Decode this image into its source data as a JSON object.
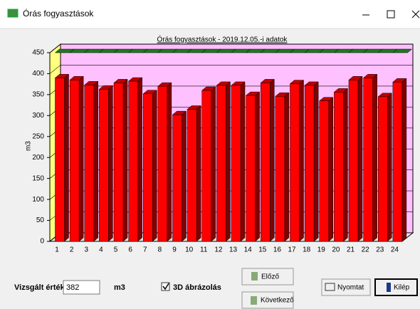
{
  "window": {
    "title": "Órás fogyasztások"
  },
  "chart_data": {
    "type": "bar3d",
    "title": "Órás fogyasztások - 2019.12.05.-i adatok",
    "y_label": "m3",
    "categories": [
      "1",
      "2",
      "3",
      "4",
      "5",
      "6",
      "7",
      "8",
      "9",
      "10",
      "11",
      "12",
      "13",
      "14",
      "15",
      "16",
      "17",
      "18",
      "19",
      "20",
      "21",
      "22",
      "23",
      "24"
    ],
    "values": [
      390,
      385,
      373,
      363,
      378,
      382,
      352,
      370,
      302,
      315,
      360,
      372,
      372,
      348,
      378,
      346,
      376,
      372,
      335,
      356,
      385,
      390,
      345,
      380
    ],
    "color": "#ff0000",
    "limit_value": 450,
    "limit_color": "#1f7a1f",
    "ylim": [
      0,
      450
    ],
    "yticks": [
      0,
      50,
      100,
      150,
      200,
      250,
      300,
      350,
      400,
      450
    ],
    "grid": true
  },
  "controls": {
    "measured_label": "Vizsgált érték",
    "measured_value": "382",
    "unit": "m3",
    "checkbox_label": "3D ábrázolás",
    "prev": "Előző",
    "next": "Következő",
    "print": "Nyomtat",
    "exit": "Kilép"
  }
}
